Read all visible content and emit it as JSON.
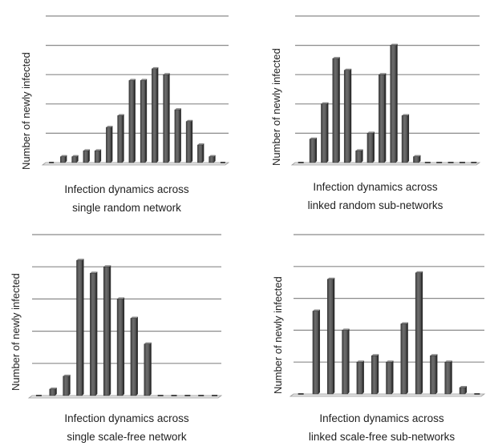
{
  "chart_data": [
    {
      "type": "bar",
      "ylabel": "Number  of newly infected",
      "caption": [
        "Infection dynamics across",
        "single random network"
      ],
      "ylim": [
        0,
        10
      ],
      "grid": true,
      "values": [
        0,
        0.4,
        0.4,
        0.8,
        0.8,
        2.4,
        3.2,
        5.6,
        5.6,
        6.4,
        6.0,
        3.6,
        2.8,
        1.2,
        0.4,
        0
      ]
    },
    {
      "type": "bar",
      "ylabel": "Number  of newly infected",
      "caption": [
        "Infection dynamics across",
        "linked random sub-networks"
      ],
      "ylim": [
        0,
        10
      ],
      "grid": true,
      "values": [
        0,
        1.6,
        4.0,
        7.1,
        6.3,
        0.8,
        2.0,
        6.0,
        8.0,
        3.2,
        0.4,
        0,
        0,
        0,
        0,
        0
      ]
    },
    {
      "type": "bar",
      "ylabel": "Number  of newly infected",
      "caption": [
        "Infection dynamics across",
        "single scale-free network"
      ],
      "ylim": [
        0,
        10
      ],
      "grid": true,
      "values": [
        0,
        0.4,
        1.2,
        8.4,
        7.6,
        8.0,
        6.0,
        4.8,
        3.2,
        0,
        0,
        0,
        0,
        0
      ]
    },
    {
      "type": "bar",
      "ylabel": "Number  of newly infected",
      "caption": [
        "Infection dynamics across",
        "linked scale-free sub-networks"
      ],
      "ylim": [
        0,
        10
      ],
      "grid": true,
      "values": [
        0,
        5.2,
        7.2,
        4.0,
        2.0,
        2.4,
        2.0,
        4.4,
        7.6,
        2.4,
        2.0,
        0.4,
        0
      ]
    }
  ]
}
